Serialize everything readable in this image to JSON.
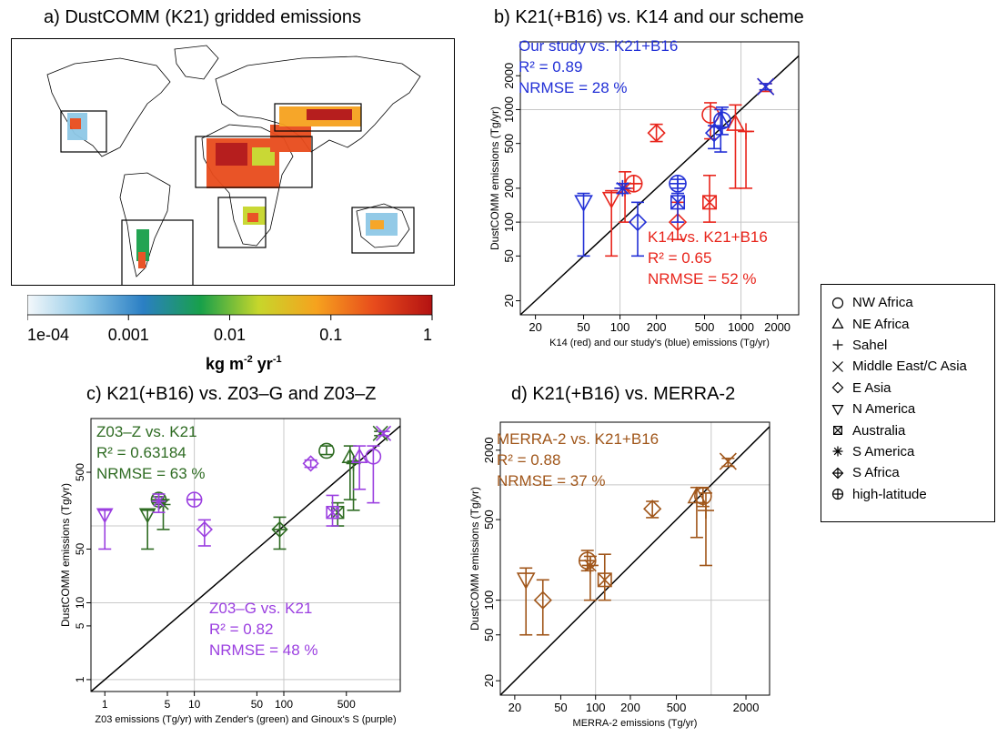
{
  "panels": {
    "a_title": "a) DustCOMM (K21) gridded emissions",
    "b_title": "b) K21(+B16) vs. K14 and our scheme",
    "c_title": "c) K21(+B16) vs. Z03–G and Z03–Z",
    "d_title": "d) K21(+B16) vs. MERRA-2"
  },
  "colorbar": {
    "ticks": [
      "1e-04",
      "0.001",
      "0.01",
      "0.1",
      "1"
    ],
    "unit": "kg m",
    "unit_sup1": "-2",
    "unit_mid": " yr",
    "unit_sup2": "-1",
    "colors": [
      "#f4f8fb",
      "#8ec8e6",
      "#2b7fc4",
      "#18a04a",
      "#c7d62b",
      "#f6a21e",
      "#e84b1c",
      "#b31212"
    ]
  },
  "legend": {
    "items": [
      {
        "label": "NW Africa",
        "marker": "circle"
      },
      {
        "label": "NE Africa",
        "marker": "triangle-up"
      },
      {
        "label": "Sahel",
        "marker": "plus"
      },
      {
        "label": "Middle East/C Asia",
        "marker": "cross"
      },
      {
        "label": "E Asia",
        "marker": "diamond"
      },
      {
        "label": "N America",
        "marker": "triangle-down"
      },
      {
        "label": "Australia",
        "marker": "boxed-x"
      },
      {
        "label": "S America",
        "marker": "asterisk"
      },
      {
        "label": "S Africa",
        "marker": "diamond-plus"
      },
      {
        "label": "high-latitude",
        "marker": "circle-plus"
      }
    ]
  },
  "chart_data": [
    {
      "id": "b",
      "type": "scatter",
      "xlabel": "K14 (red) and our study's (blue) emissions (Tg/yr)",
      "ylabel": "DustCOMM emissions (Tg/yr)",
      "xscale": "log",
      "yscale": "log",
      "xlim": [
        15,
        3000
      ],
      "ylim": [
        15,
        4000
      ],
      "xticks": [
        20,
        50,
        100,
        200,
        500,
        1000,
        2000
      ],
      "yticks": [
        20,
        50,
        100,
        200,
        500,
        1000,
        2000
      ],
      "grid_y": [
        100,
        1000
      ],
      "grid_x": [
        100,
        1000
      ],
      "one_to_one": true,
      "annotations": [
        {
          "color": "#2230d6",
          "lines": [
            "Our study vs. K21+B16",
            "R² = 0.89",
            "NRMSE = 28 %"
          ]
        },
        {
          "color": "#e8251c",
          "lines": [
            "K14 vs. K21+B16",
            "R² = 0.65",
            "NRMSE = 52 %"
          ]
        }
      ],
      "series": [
        {
          "name": "K14",
          "color": "#e8251c",
          "points": [
            {
              "region": "NW Africa",
              "marker": "circle",
              "x": 560,
              "y": 900,
              "lo": 550,
              "hi": 1150
            },
            {
              "region": "NE Africa",
              "marker": "triangle-up",
              "x": 900,
              "y": 750,
              "lo": 200,
              "hi": 1100
            },
            {
              "region": "Sahel",
              "marker": "plus",
              "x": 1100,
              "y": 640,
              "lo": 200,
              "hi": 640
            },
            {
              "region": "Middle East/C Asia",
              "marker": "cross",
              "x": 1600,
              "y": 1600,
              "lo": 1450,
              "hi": 1700
            },
            {
              "region": "E Asia",
              "marker": "diamond",
              "x": 200,
              "y": 620,
              "lo": 520,
              "hi": 740
            },
            {
              "region": "E Asia",
              "marker": "diamond",
              "x": 300,
              "y": 100,
              "lo": 70,
              "hi": 150
            },
            {
              "region": "N America",
              "marker": "triangle-down",
              "x": 85,
              "y": 160,
              "lo": 50,
              "hi": 190
            },
            {
              "region": "Australia",
              "marker": "boxed-x",
              "x": 550,
              "y": 150,
              "lo": 100,
              "hi": 260
            },
            {
              "region": "S America",
              "marker": "asterisk",
              "x": 110,
              "y": 200,
              "lo": 100,
              "hi": 280
            },
            {
              "region": "high-latitude",
              "marker": "circle-plus",
              "x": 130,
              "y": 220,
              "lo": 220,
              "hi": 220
            }
          ]
        },
        {
          "name": "Our study",
          "color": "#2230d6",
          "points": [
            {
              "region": "NW Africa",
              "marker": "circle",
              "x": 700,
              "y": 800,
              "lo": 600,
              "hi": 1050
            },
            {
              "region": "NE Africa",
              "marker": "triangle-up",
              "x": 680,
              "y": 800,
              "lo": 420,
              "hi": 1000
            },
            {
              "region": "E Asia",
              "marker": "diamond",
              "x": 600,
              "y": 620,
              "lo": 450,
              "hi": 720
            },
            {
              "region": "Middle East/C Asia",
              "marker": "cross",
              "x": 1600,
              "y": 1600,
              "lo": 1500,
              "hi": 1700
            },
            {
              "region": "N America",
              "marker": "triangle-down",
              "x": 50,
              "y": 150,
              "lo": 50,
              "hi": 180
            },
            {
              "region": "E Asia",
              "marker": "diamond",
              "x": 140,
              "y": 100,
              "lo": 50,
              "hi": 150
            },
            {
              "region": "S America",
              "marker": "asterisk",
              "x": 105,
              "y": 200,
              "lo": 180,
              "hi": 220
            },
            {
              "region": "Australia",
              "marker": "boxed-x",
              "x": 300,
              "y": 150,
              "lo": 100,
              "hi": 180
            },
            {
              "region": "high-latitude",
              "marker": "circle-plus",
              "x": 300,
              "y": 220,
              "lo": 200,
              "hi": 240
            }
          ]
        }
      ]
    },
    {
      "id": "c",
      "type": "scatter",
      "xlabel": "Z03 emissions (Tg/yr) with Zender's (green) and Ginoux's S (purple)",
      "ylabel": "DustCOMM emissions (Tg/yr)",
      "xscale": "log",
      "yscale": "log",
      "xlim": [
        0.7,
        2000
      ],
      "ylim": [
        0.7,
        2500
      ],
      "xticks": [
        1,
        5,
        10,
        50,
        100,
        500
      ],
      "yticks": [
        1,
        5,
        10,
        50,
        500
      ],
      "grid_y": [
        1,
        10,
        100
      ],
      "grid_x": [
        10,
        100
      ],
      "one_to_one": true,
      "annotations": [
        {
          "color": "#2e6b22",
          "lines": [
            "Z03–Z vs. K21",
            "R² = 0.63184",
            "NRMSE = 63 %"
          ]
        },
        {
          "color": "#9b3fe0",
          "lines": [
            "Z03–G vs. K21",
            "R² = 0.82",
            "NRMSE = 48 %"
          ]
        }
      ],
      "series": [
        {
          "name": "Z03–Z",
          "color": "#2e6b22",
          "points": [
            {
              "region": "N America",
              "marker": "triangle-down",
              "x": 3,
              "y": 140,
              "lo": 50,
              "hi": 160
            },
            {
              "region": "S America",
              "marker": "asterisk",
              "x": 4.5,
              "y": 190,
              "lo": 90,
              "hi": 220
            },
            {
              "region": "high-latitude",
              "marker": "circle-plus",
              "x": 4,
              "y": 220,
              "lo": 200,
              "hi": 240
            },
            {
              "region": "S Africa",
              "marker": "diamond-plus",
              "x": 90,
              "y": 90,
              "lo": 50,
              "hi": 130
            },
            {
              "region": "Australia",
              "marker": "boxed-x",
              "x": 400,
              "y": 150,
              "lo": 100,
              "hi": 200
            },
            {
              "region": "NW Africa",
              "marker": "circle",
              "x": 300,
              "y": 950,
              "lo": 850,
              "hi": 1100
            },
            {
              "region": "NE Africa",
              "marker": "triangle-up",
              "x": 550,
              "y": 800,
              "lo": 220,
              "hi": 1100
            },
            {
              "region": "Sahel",
              "marker": "plus",
              "x": 600,
              "y": 650,
              "lo": 160,
              "hi": 700
            },
            {
              "region": "Middle East/C Asia",
              "marker": "cross",
              "x": 1200,
              "y": 1600,
              "lo": 1500,
              "hi": 1700
            }
          ]
        },
        {
          "name": "Z03–G",
          "color": "#9b3fe0",
          "points": [
            {
              "region": "N America",
              "marker": "triangle-down",
              "x": 1,
              "y": 140,
              "lo": 50,
              "hi": 160
            },
            {
              "region": "E Asia",
              "marker": "diamond",
              "x": 13,
              "y": 90,
              "lo": 55,
              "hi": 120
            },
            {
              "region": "high-latitude",
              "marker": "circle-plus",
              "x": 10,
              "y": 220,
              "lo": 220,
              "hi": 220
            },
            {
              "region": "S America",
              "marker": "asterisk",
              "x": 4,
              "y": 210,
              "lo": 150,
              "hi": 260
            },
            {
              "region": "E Asia",
              "marker": "diamond",
              "x": 200,
              "y": 650,
              "lo": 580,
              "hi": 720
            },
            {
              "region": "Australia",
              "marker": "boxed-x",
              "x": 350,
              "y": 150,
              "lo": 100,
              "hi": 250
            },
            {
              "region": "NE Africa",
              "marker": "triangle-up",
              "x": 700,
              "y": 800,
              "lo": 300,
              "hi": 1100
            },
            {
              "region": "NW Africa",
              "marker": "circle",
              "x": 1000,
              "y": 800,
              "lo": 200,
              "hi": 1100
            },
            {
              "region": "Middle East/C Asia",
              "marker": "cross",
              "x": 1300,
              "y": 1600,
              "lo": 1500,
              "hi": 1700
            }
          ]
        }
      ]
    },
    {
      "id": "d",
      "type": "scatter",
      "xlabel": "MERRA-2 emissions (Tg/yr)",
      "ylabel": "DustCOMM emissions (Tg/yr)",
      "xscale": "log",
      "yscale": "log",
      "xlim": [
        15,
        3200
      ],
      "ylim": [
        15,
        3500
      ],
      "xticks": [
        20,
        50,
        100,
        200,
        500,
        2000
      ],
      "yticks": [
        20,
        50,
        100,
        500,
        2000
      ],
      "grid_y": [
        100,
        1000
      ],
      "grid_x": [
        100,
        1000
      ],
      "one_to_one": true,
      "annotations": [
        {
          "color": "#a0561a",
          "lines": [
            "MERRA-2 vs. K21+B16",
            "R² = 0.88",
            "NRMSE = 37 %"
          ]
        }
      ],
      "series": [
        {
          "name": "MERRA-2",
          "color": "#a0561a",
          "points": [
            {
              "region": "N America",
              "marker": "triangle-down",
              "x": 25,
              "y": 150,
              "lo": 50,
              "hi": 190
            },
            {
              "region": "E Asia",
              "marker": "diamond",
              "x": 35,
              "y": 100,
              "lo": 50,
              "hi": 150
            },
            {
              "region": "high-latitude",
              "marker": "circle-plus",
              "x": 85,
              "y": 220,
              "lo": 180,
              "hi": 270
            },
            {
              "region": "S America",
              "marker": "asterisk",
              "x": 90,
              "y": 200,
              "lo": 100,
              "hi": 240
            },
            {
              "region": "Australia",
              "marker": "boxed-x",
              "x": 120,
              "y": 150,
              "lo": 100,
              "hi": 250
            },
            {
              "region": "E Asia",
              "marker": "diamond",
              "x": 310,
              "y": 620,
              "lo": 520,
              "hi": 720
            },
            {
              "region": "NE Africa",
              "marker": "triangle-up",
              "x": 750,
              "y": 800,
              "lo": 350,
              "hi": 950
            },
            {
              "region": "NW Africa",
              "marker": "circle",
              "x": 850,
              "y": 800,
              "lo": 650,
              "hi": 950
            },
            {
              "region": "Sahel",
              "marker": "plus",
              "x": 900,
              "y": 600,
              "lo": 200,
              "hi": 850
            },
            {
              "region": "Middle East/C Asia",
              "marker": "cross",
              "x": 1400,
              "y": 1600,
              "lo": 1450,
              "hi": 1700
            }
          ]
        }
      ]
    }
  ]
}
